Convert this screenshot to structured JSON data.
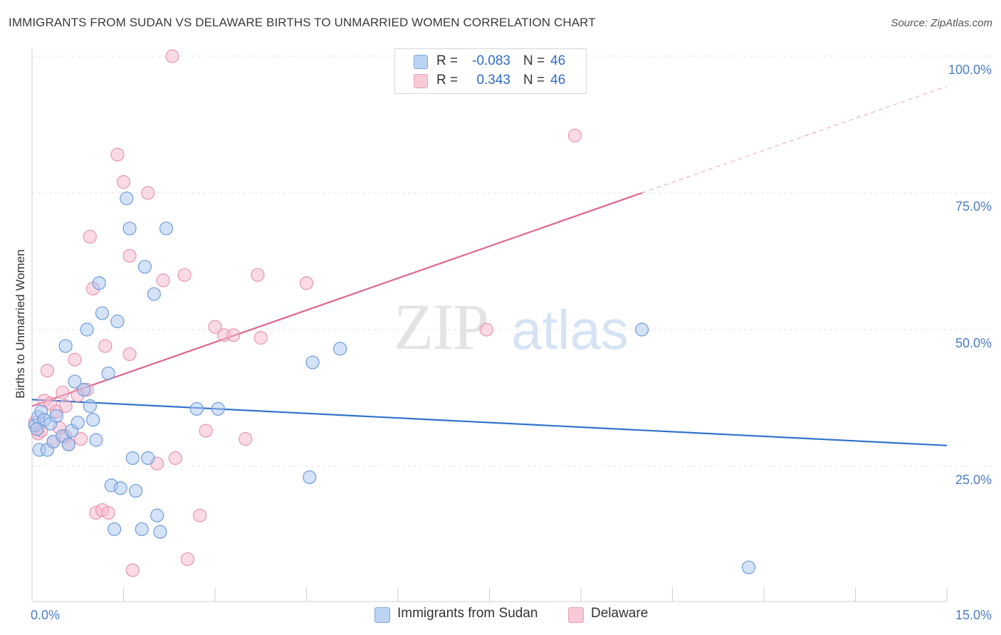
{
  "header": {
    "title": "IMMIGRANTS FROM SUDAN VS DELAWARE BIRTHS TO UNMARRIED WOMEN CORRELATION CHART",
    "source": "Source: ZipAtlas.com"
  },
  "watermark": {
    "zip": "ZIP",
    "atlas": "atlas"
  },
  "legend": {
    "series": [
      {
        "r_label": "R =",
        "r_value": "-0.083",
        "n_label": "N =",
        "n_value": "46"
      },
      {
        "r_label": "R =",
        "r_value": "0.343",
        "n_label": "N =",
        "n_value": "46"
      }
    ]
  },
  "bottom_legend": {
    "sudan": "Immigrants from Sudan",
    "delaware": "Delaware"
  },
  "colors": {
    "sudan_fill": "#a9c6f0",
    "sudan_stroke": "#6e9bdb",
    "sudan_line": "#2f72cc",
    "delaware_fill": "#f6b8cb",
    "delaware_stroke": "#e894b0",
    "delaware_line": "#e0648e",
    "tick_label": "#4a7cc6",
    "grid": "#e6e6e6"
  },
  "chart_data": {
    "type": "scatter",
    "title": "IMMIGRANTS FROM SUDAN VS DELAWARE BIRTHS TO UNMARRIED WOMEN CORRELATION CHART",
    "xlabel": "",
    "ylabel": "Births to Unmarried Women",
    "xlim": [
      0,
      15
    ],
    "ylim": [
      0,
      100
    ],
    "x_tick_labels": [
      "0.0%",
      "15.0%"
    ],
    "y_ticks": [
      25,
      50,
      75,
      100
    ],
    "y_tick_labels": [
      "25.0%",
      "50.0%",
      "75.0%",
      "100.0%"
    ],
    "grid": true,
    "series": [
      {
        "name": "Immigrants from Sudan",
        "points": [
          [
            0.05,
            32.5
          ],
          [
            0.1,
            34.0
          ],
          [
            0.12,
            28.0
          ],
          [
            0.15,
            35.0
          ],
          [
            0.2,
            33.5
          ],
          [
            0.25,
            28.0
          ],
          [
            0.3,
            32.8
          ],
          [
            0.35,
            29.5
          ],
          [
            0.4,
            34.2
          ],
          [
            0.5,
            30.5
          ],
          [
            0.55,
            47.0
          ],
          [
            0.6,
            29.0
          ],
          [
            0.65,
            31.5
          ],
          [
            0.7,
            40.5
          ],
          [
            0.75,
            33.0
          ],
          [
            0.85,
            39.0
          ],
          [
            0.9,
            50.0
          ],
          [
            0.95,
            36.0
          ],
          [
            1.0,
            33.5
          ],
          [
            1.05,
            29.8
          ],
          [
            1.1,
            58.5
          ],
          [
            1.15,
            53.0
          ],
          [
            1.25,
            42.0
          ],
          [
            1.3,
            21.5
          ],
          [
            1.35,
            13.5
          ],
          [
            1.4,
            51.5
          ],
          [
            1.45,
            21.0
          ],
          [
            1.55,
            74.0
          ],
          [
            1.6,
            68.5
          ],
          [
            1.65,
            26.5
          ],
          [
            1.7,
            20.5
          ],
          [
            1.8,
            13.5
          ],
          [
            1.85,
            61.5
          ],
          [
            1.9,
            26.5
          ],
          [
            2.0,
            56.5
          ],
          [
            2.05,
            16.0
          ],
          [
            2.1,
            13.0
          ],
          [
            2.2,
            68.5
          ],
          [
            2.7,
            35.5
          ],
          [
            3.05,
            35.5
          ],
          [
            4.55,
            23.0
          ],
          [
            4.6,
            44.0
          ],
          [
            5.05,
            46.5
          ],
          [
            10.0,
            50.0
          ],
          [
            11.75,
            6.5
          ],
          [
            0.08,
            31.8
          ]
        ],
        "trend": {
          "x": [
            0,
            15
          ],
          "y": [
            37.2,
            28.8
          ]
        }
      },
      {
        "name": "Delaware",
        "points": [
          [
            0.05,
            33.0
          ],
          [
            0.1,
            31.0
          ],
          [
            0.15,
            31.5
          ],
          [
            0.2,
            37.0
          ],
          [
            0.25,
            42.5
          ],
          [
            0.3,
            36.5
          ],
          [
            0.35,
            29.5
          ],
          [
            0.4,
            35.0
          ],
          [
            0.45,
            32.0
          ],
          [
            0.5,
            38.5
          ],
          [
            0.55,
            30.5
          ],
          [
            0.6,
            29.0
          ],
          [
            0.7,
            44.5
          ],
          [
            0.75,
            38.0
          ],
          [
            0.8,
            30.0
          ],
          [
            0.9,
            39.0
          ],
          [
            0.95,
            67.0
          ],
          [
            1.0,
            57.5
          ],
          [
            1.05,
            16.5
          ],
          [
            1.15,
            17.0
          ],
          [
            1.2,
            47.0
          ],
          [
            1.25,
            16.5
          ],
          [
            1.4,
            82.0
          ],
          [
            1.5,
            77.0
          ],
          [
            1.6,
            45.5
          ],
          [
            1.6,
            63.5
          ],
          [
            1.65,
            6.0
          ],
          [
            1.9,
            75.0
          ],
          [
            2.05,
            25.5
          ],
          [
            2.15,
            59.0
          ],
          [
            2.35,
            26.5
          ],
          [
            2.3,
            100.0
          ],
          [
            2.5,
            60.0
          ],
          [
            2.55,
            8.0
          ],
          [
            2.75,
            16.0
          ],
          [
            2.85,
            31.5
          ],
          [
            3.0,
            50.5
          ],
          [
            3.15,
            49.0
          ],
          [
            3.3,
            49.0
          ],
          [
            3.5,
            30.0
          ],
          [
            3.7,
            60.0
          ],
          [
            3.75,
            48.5
          ],
          [
            4.5,
            58.5
          ],
          [
            7.45,
            50.0
          ],
          [
            8.9,
            85.5
          ],
          [
            0.55,
            36.0
          ]
        ],
        "trend": {
          "x": [
            0,
            10
          ],
          "y": [
            36.0,
            75.0
          ]
        },
        "trend_extrapolated": {
          "x": [
            10,
            15
          ],
          "y": [
            75.0,
            94.5
          ]
        }
      }
    ]
  }
}
